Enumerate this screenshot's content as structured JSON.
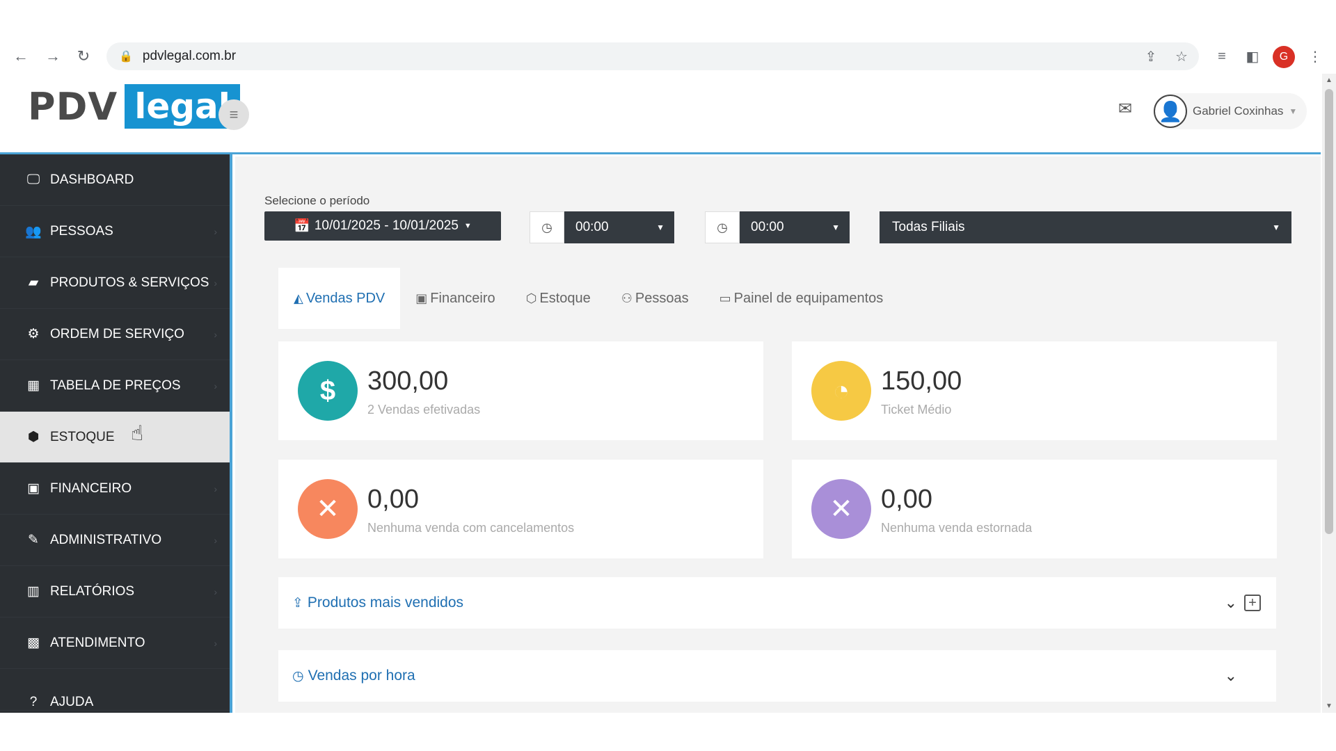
{
  "browser": {
    "url": "pdvlegal.com.br",
    "profile_initial": "G"
  },
  "header": {
    "logo_part1": "PDV",
    "logo_part2": "legal",
    "user_name": "Gabriel Coxinhas"
  },
  "sidebar": {
    "items": [
      {
        "label": "DASHBOARD",
        "icon": "monitor-icon"
      },
      {
        "label": "PESSOAS",
        "icon": "users-icon"
      },
      {
        "label": "PRODUTOS & SERVIÇOS",
        "icon": "book-icon"
      },
      {
        "label": "ORDEM DE SERVIÇO",
        "icon": "gear-icon"
      },
      {
        "label": "TABELA DE PREÇOS",
        "icon": "table-icon"
      },
      {
        "label": "ESTOQUE",
        "icon": "cube-icon"
      },
      {
        "label": "FINANCEIRO",
        "icon": "money-icon"
      },
      {
        "label": "ADMINISTRATIVO",
        "icon": "edit-icon"
      },
      {
        "label": "RELATÓRIOS",
        "icon": "bar-chart-icon"
      },
      {
        "label": "ATENDIMENTO",
        "icon": "grid-icon"
      },
      {
        "label": "AJUDA",
        "icon": "question-icon"
      }
    ],
    "active_item": "ESTOQUE"
  },
  "filters": {
    "period_label": "Selecione o período",
    "date_range": "10/01/2025 - 10/01/2025",
    "time_start": "00:00",
    "time_end": "00:00",
    "branch": "Todas Filiais"
  },
  "tabs": [
    {
      "label": "Vendas PDV",
      "icon": "area-chart-icon"
    },
    {
      "label": "Financeiro",
      "icon": "money-icon"
    },
    {
      "label": "Estoque",
      "icon": "cube-icon"
    },
    {
      "label": "Pessoas",
      "icon": "user-icon"
    },
    {
      "label": "Painel de equipamentos",
      "icon": "monitor-icon"
    }
  ],
  "active_tab": "Vendas PDV",
  "cards": [
    {
      "value": "300,00",
      "subtitle": "2 Vendas efetivadas",
      "color": "#1fa8a8",
      "icon": "money-icon"
    },
    {
      "value": "150,00",
      "subtitle": "Ticket Médio",
      "color": "#f6c944",
      "icon": "dashboard-icon"
    },
    {
      "value": "0,00",
      "subtitle": "Nenhuma venda com cancelamentos",
      "color": "#f7875e",
      "icon": "close-icon"
    },
    {
      "value": "0,00",
      "subtitle": "Nenhuma venda estornada",
      "color": "#a98fd8",
      "icon": "close-icon"
    }
  ],
  "panels": [
    {
      "title": "Produtos mais vendidos",
      "icon": "upload-icon"
    },
    {
      "title": "Vendas por hora",
      "icon": "clock-icon"
    }
  ]
}
